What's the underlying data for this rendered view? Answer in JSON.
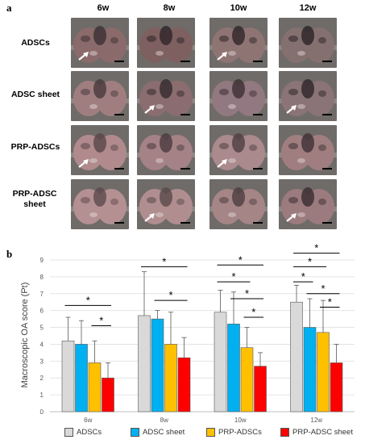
{
  "panel_a": {
    "letter": "a",
    "columns": [
      "6w",
      "8w",
      "10w",
      "12w"
    ],
    "rows": [
      "ADSCs",
      "ADSC sheet",
      "PRP-ADSCs",
      "PRP-ADSC sheet"
    ]
  },
  "panel_b": {
    "letter": "b"
  },
  "chart_data": {
    "type": "bar",
    "categories": [
      "6w",
      "8w",
      "10w",
      "12w"
    ],
    "ylabel": "Macroscopic OA score (Pt)",
    "ylim": [
      0,
      9
    ],
    "yticks": [
      "0",
      "1",
      "2",
      "3",
      "4",
      "5",
      "6",
      "7",
      "8",
      "9"
    ],
    "grid": true,
    "legend_position": "bottom",
    "series": [
      {
        "name": "ADSCs",
        "color": "#d9d9d9",
        "values": [
          4.2,
          5.7,
          5.9,
          6.5
        ],
        "errors": [
          1.4,
          2.6,
          1.3,
          1.0
        ]
      },
      {
        "name": "ADSC sheet",
        "color": "#00b0f0",
        "values": [
          4.0,
          5.5,
          5.2,
          5.0
        ],
        "errors": [
          1.4,
          0.5,
          1.9,
          1.7
        ]
      },
      {
        "name": "PRP-ADSCs",
        "color": "#ffc000",
        "values": [
          2.9,
          4.0,
          3.8,
          4.7
        ],
        "errors": [
          1.3,
          1.9,
          1.2,
          1.9
        ]
      },
      {
        "name": "PRP-ADSC sheet",
        "color": "#ff0000",
        "values": [
          2.0,
          3.2,
          2.7,
          2.9
        ],
        "errors": [
          0.9,
          1.2,
          0.8,
          1.1
        ]
      }
    ],
    "significance": [
      {
        "group": 0,
        "from": 0,
        "to": 3,
        "y": 6.3,
        "label": "*"
      },
      {
        "group": 0,
        "from": 2,
        "to": 3,
        "y": 5.1,
        "label": "*"
      },
      {
        "group": 1,
        "from": 0,
        "to": 3,
        "y": 8.6,
        "label": "*"
      },
      {
        "group": 1,
        "from": 1,
        "to": 3,
        "y": 6.6,
        "label": "*"
      },
      {
        "group": 2,
        "from": 0,
        "to": 3,
        "y": 8.7,
        "label": "*"
      },
      {
        "group": 2,
        "from": 0,
        "to": 2,
        "y": 7.7,
        "label": "*"
      },
      {
        "group": 2,
        "from": 1,
        "to": 3,
        "y": 6.7,
        "label": "*"
      },
      {
        "group": 2,
        "from": 2,
        "to": 3,
        "y": 5.6,
        "label": "*"
      },
      {
        "group": 3,
        "from": 0,
        "to": 3,
        "y": 9.4,
        "label": "*"
      },
      {
        "group": 3,
        "from": 0,
        "to": 2,
        "y": 8.6,
        "label": "*"
      },
      {
        "group": 3,
        "from": 0,
        "to": 1,
        "y": 7.7,
        "label": "*"
      },
      {
        "group": 3,
        "from": 1,
        "to": 3,
        "y": 7.0,
        "label": "*"
      },
      {
        "group": 3,
        "from": 2,
        "to": 3,
        "y": 6.2,
        "label": "*"
      }
    ]
  }
}
